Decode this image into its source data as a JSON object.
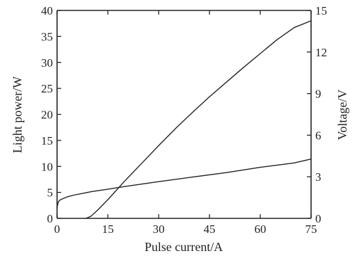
{
  "chart_data": {
    "type": "line",
    "title": "",
    "xlabel": "Pulse current/A",
    "ylabel_left": "Light power/W",
    "ylabel_right": "Voltage/V",
    "xlim": [
      0,
      75
    ],
    "ylim_left": [
      0,
      40
    ],
    "ylim_right": [
      0,
      15
    ],
    "x_ticks": [
      0,
      15,
      30,
      45,
      60,
      75
    ],
    "y_left_ticks": [
      0,
      5,
      10,
      15,
      20,
      25,
      30,
      35,
      40
    ],
    "y_right_ticks": [
      0,
      3,
      6,
      9,
      12,
      15
    ],
    "grid": false,
    "legend": "none",
    "series": [
      {
        "axis": "left",
        "x": [
          8.5,
          10,
          12,
          15,
          20,
          25,
          30,
          35,
          40,
          45,
          50,
          55,
          60,
          65,
          70,
          75
        ],
        "values": [
          0,
          0.4,
          1.6,
          3.6,
          7.2,
          10.6,
          14.0,
          17.3,
          20.4,
          23.4,
          26.2,
          29.0,
          31.7,
          34.4,
          36.7,
          38.0
        ]
      },
      {
        "axis": "right",
        "x": [
          0,
          0.3,
          0.7,
          1.5,
          3,
          5,
          10,
          15,
          20,
          30,
          40,
          50,
          60,
          70,
          75
        ],
        "values": [
          0.8,
          1.15,
          1.3,
          1.4,
          1.55,
          1.68,
          1.92,
          2.1,
          2.3,
          2.65,
          2.98,
          3.3,
          3.68,
          4.0,
          4.28
        ]
      }
    ]
  }
}
